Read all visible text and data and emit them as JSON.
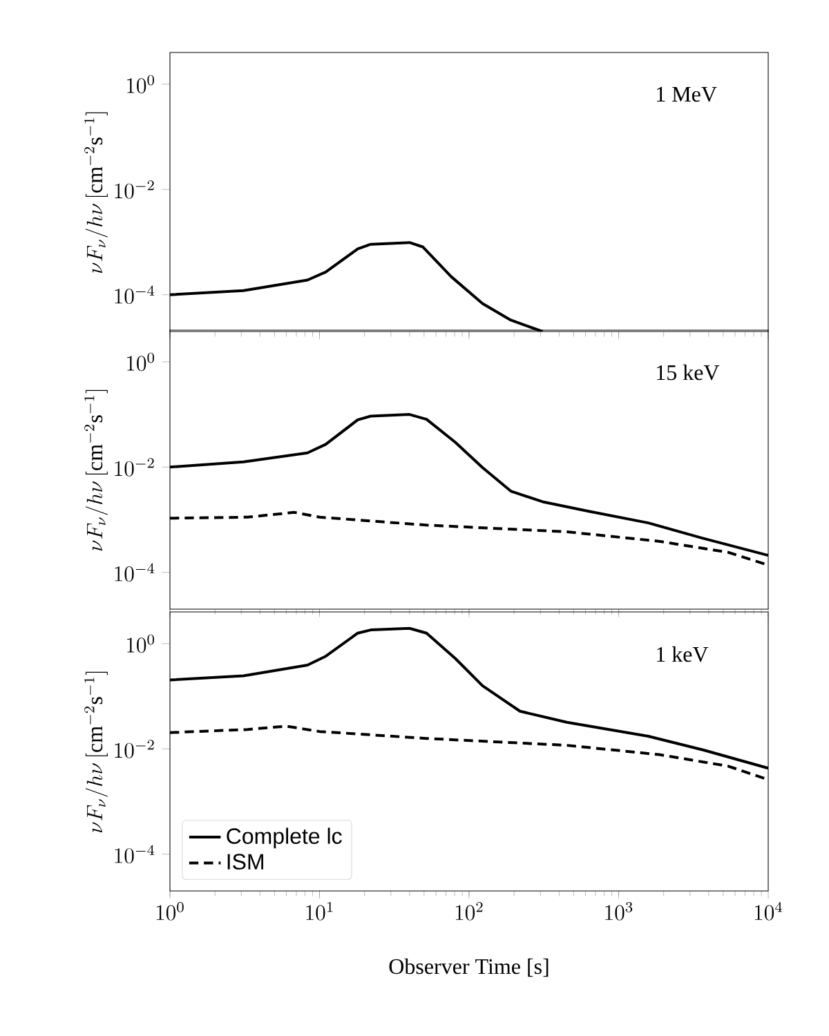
{
  "chart_data": [
    {
      "type": "line",
      "log": "xy",
      "xlim": [
        1,
        10000
      ],
      "ylim": [
        2e-05,
        4
      ],
      "tick_labels": "y",
      "marker": "none",
      "xticks": [
        {
          "value": 1,
          "label": null
        },
        {
          "value": 10,
          "label": null
        },
        {
          "value": 100,
          "label": null
        },
        {
          "value": 1000,
          "label": null
        },
        {
          "value": 10000,
          "label": null
        }
      ],
      "yticks": [
        {
          "value": 0.0001,
          "label": "10^{-4}"
        },
        {
          "value": 0.01,
          "label": "10^{-2}"
        },
        {
          "value": 1,
          "label": "10^{0}"
        }
      ],
      "ylabel": "\\nu F_\\nu/h\\nu\\,[\\mathrm{cm}^{-2}\\mathrm{s}^{-1}]",
      "annotations": [
        "1 MeV"
      ],
      "series": [
        {
          "color": "#000000",
          "line_style": "solid",
          "x": [
            1,
            3.1,
            8.3,
            11,
            18,
            22,
            40,
            49,
            76,
            123,
            190,
            310
          ],
          "values": [
            0.0001,
            0.00012,
            0.00019,
            0.00027,
            0.00074,
            0.00091,
            0.00098,
            0.00081,
            0.00022,
            6.8e-05,
            3.3e-05,
            2e-05
          ]
        }
      ]
    },
    {
      "type": "line",
      "log": "xy",
      "xlim": [
        1,
        10000
      ],
      "ylim": [
        2e-05,
        4
      ],
      "tick_labels": "y",
      "marker": "none",
      "xticks": [
        {
          "value": 1,
          "label": null
        },
        {
          "value": 10,
          "label": null
        },
        {
          "value": 100,
          "label": null
        },
        {
          "value": 1000,
          "label": null
        },
        {
          "value": 10000,
          "label": null
        }
      ],
      "yticks": [
        {
          "value": 0.0001,
          "label": "10^{-4}"
        },
        {
          "value": 0.01,
          "label": "10^{-2}"
        },
        {
          "value": 1,
          "label": "10^{0}"
        }
      ],
      "ylabel": "\\nu F_\\nu/h\\nu\\,[\\mathrm{cm}^{-2}\\mathrm{s}^{-1}]",
      "annotations": [
        "15 keV"
      ],
      "series": [
        {
          "color": "#000000",
          "line_style": "solid",
          "x": [
            1,
            3.1,
            8.3,
            11,
            18,
            22,
            40,
            52,
            81,
            123,
            190,
            310,
            630,
            1580,
            3700,
            10000
          ],
          "values": [
            0.01,
            0.0126,
            0.0186,
            0.027,
            0.079,
            0.093,
            0.1,
            0.081,
            0.0295,
            0.0098,
            0.0035,
            0.0022,
            0.00145,
            0.00087,
            0.00044,
            0.00021
          ]
        },
        {
          "color": "#000000",
          "line_style": "dashed",
          "x": [
            1,
            3.3,
            6.8,
            10,
            52,
            450,
            1860,
            5400,
            10000
          ],
          "values": [
            0.00107,
            0.00112,
            0.00138,
            0.00112,
            0.00079,
            0.00059,
            0.00039,
            0.00024,
            0.000138
          ]
        }
      ]
    },
    {
      "type": "line",
      "log": "xy",
      "xlim": [
        1,
        10000
      ],
      "ylim": [
        2e-05,
        4
      ],
      "marker": "none",
      "legend": "bottom left",
      "xticks": [
        {
          "value": 1,
          "label": "10^{0}"
        },
        {
          "value": 10,
          "label": "10^{1}"
        },
        {
          "value": 100,
          "label": "10^{2}"
        },
        {
          "value": 1000,
          "label": "10^{3}"
        },
        {
          "value": 10000,
          "label": "10^{4}"
        }
      ],
      "yticks": [
        {
          "value": 0.0001,
          "label": "10^{-4}"
        },
        {
          "value": 0.01,
          "label": "10^{-2}"
        },
        {
          "value": 1,
          "label": "10^{0}"
        }
      ],
      "ylabel": "\\nu F_\\nu/h\\nu\\,[\\mathrm{cm}^{-2}\\mathrm{s}^{-1}]",
      "xlabel": "Observer Time [s]",
      "annotations": [
        "1 keV"
      ],
      "series": [
        {
          "name": "Complete lc",
          "color": "#000000",
          "line_style": "solid",
          "x": [
            1,
            3.1,
            8.3,
            11,
            18,
            22,
            40,
            52,
            81,
            123,
            219,
            450,
            1580,
            3700,
            10000
          ],
          "values": [
            0.204,
            0.245,
            0.39,
            0.575,
            1.58,
            1.82,
            1.95,
            1.58,
            0.52,
            0.158,
            0.052,
            0.032,
            0.0174,
            0.0095,
            0.0043
          ]
        },
        {
          "name": "ISM",
          "color": "#000000",
          "line_style": "dashed",
          "x": [
            1,
            3.3,
            6,
            10,
            52,
            450,
            1860,
            5400,
            10000
          ],
          "values": [
            0.0204,
            0.0234,
            0.027,
            0.0214,
            0.0158,
            0.0117,
            0.0078,
            0.0047,
            0.0026
          ]
        }
      ]
    }
  ]
}
